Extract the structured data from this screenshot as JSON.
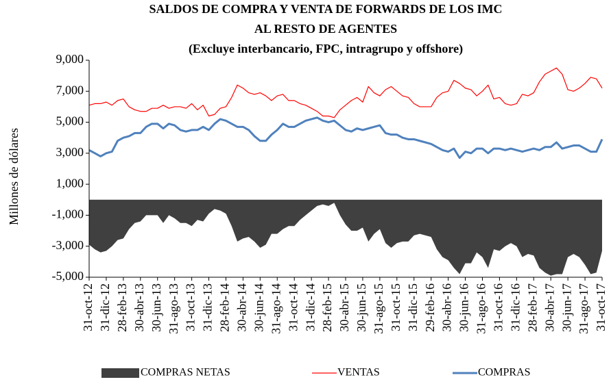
{
  "chart_data": {
    "type": "line",
    "title": "SALDOS DE COMPRA Y VENTA DE FORWARDS DE LOS IMC",
    "title_line2": "AL RESTO DE AGENTES",
    "subtitle": "(Excluye interbancario, FPC, intragrupo y offshore)",
    "y_label": "Millones de dólares",
    "categories": [
      "31-oct-12",
      null,
      null,
      "31-dic-12",
      null,
      null,
      "28-feb-13",
      null,
      null,
      "30-abr-13",
      null,
      null,
      "30-jun-13",
      null,
      null,
      "31-ago-13",
      null,
      null,
      "31-oct-13",
      null,
      null,
      "31-dic-13",
      null,
      null,
      "28-feb-14",
      null,
      null,
      "30-abr-14",
      null,
      null,
      "30-jun-14",
      null,
      null,
      "31-ago-14",
      null,
      null,
      "31-oct-14",
      null,
      null,
      "31-dic-14",
      null,
      null,
      "28-feb-15",
      null,
      null,
      "30-abr-15",
      null,
      null,
      "30-jun-15",
      null,
      null,
      "31-ago-15",
      null,
      null,
      "31-oct-15",
      null,
      null,
      "31-dic-15",
      null,
      null,
      "29-feb-16",
      null,
      null,
      "30-abr-16",
      null,
      null,
      "30-jun-16",
      null,
      null,
      "31-ago-16",
      null,
      null,
      "31-oct-16",
      null,
      null,
      "31-dic-16",
      null,
      null,
      "28-feb-17",
      null,
      null,
      "30-abr-17",
      null,
      null,
      "30-jun-17",
      null,
      null,
      "31-ago-17",
      null,
      null,
      "31-oct-17"
    ],
    "series": [
      {
        "name": "COMPRAS NETAS",
        "kind": "area",
        "color": "#404040",
        "values": [
          -2900,
          -3200,
          -3400,
          -3300,
          -3000,
          -2600,
          -2500,
          -1900,
          -1500,
          -1400,
          -1000,
          -1000,
          -1000,
          -1500,
          -1000,
          -1200,
          -1500,
          -1500,
          -1700,
          -1300,
          -1400,
          -900,
          -600,
          -700,
          -900,
          -1700,
          -2700,
          -2500,
          -2400,
          -2700,
          -3100,
          -2900,
          -2200,
          -2200,
          -1900,
          -1700,
          -1700,
          -1300,
          -1000,
          -700,
          -400,
          -300,
          -400,
          -200,
          -1000,
          -1600,
          -2000,
          -2000,
          -1800,
          -2700,
          -2200,
          -1900,
          -2800,
          -3100,
          -2800,
          -2700,
          -2700,
          -2300,
          -2200,
          -2300,
          -2400,
          -3200,
          -3700,
          -3900,
          -4400,
          -4800,
          -4100,
          -4100,
          -3400,
          -3700,
          -4400,
          -3200,
          -3300,
          -3000,
          -2800,
          -3000,
          -3700,
          -3500,
          -3600,
          -4400,
          -4700,
          -4900,
          -4800,
          -4800,
          -3700,
          -3500,
          -3700,
          -4200,
          -4800,
          -4700,
          -3300
        ]
      },
      {
        "name": "VENTAS",
        "kind": "line",
        "color": "#ff0000",
        "width": 1.2,
        "values": [
          6100,
          6200,
          6200,
          6300,
          6100,
          6400,
          6500,
          6000,
          5800,
          5700,
          5700,
          5900,
          5900,
          6100,
          5900,
          6000,
          6000,
          5900,
          6200,
          5800,
          6100,
          5400,
          5500,
          5900,
          6000,
          6600,
          7400,
          7200,
          6900,
          6800,
          6900,
          6700,
          6400,
          6700,
          6800,
          6400,
          6400,
          6200,
          6100,
          5900,
          5700,
          5400,
          5400,
          5300,
          5800,
          6100,
          6400,
          6600,
          6300,
          7300,
          6900,
          6700,
          7100,
          7300,
          7000,
          6700,
          6600,
          6200,
          6000,
          6000,
          6000,
          6600,
          6900,
          7000,
          7700,
          7500,
          7200,
          7100,
          6700,
          7000,
          7400,
          6500,
          6600,
          6200,
          6100,
          6200,
          6800,
          6700,
          6900,
          7600,
          8100,
          8300,
          8500,
          8100,
          7100,
          7000,
          7200,
          7500,
          7900,
          7800,
          7200
        ]
      },
      {
        "name": "COMPRAS",
        "kind": "line",
        "color": "#4f81bd",
        "width": 3,
        "values": [
          3200,
          3000,
          2800,
          3000,
          3100,
          3800,
          4000,
          4100,
          4300,
          4300,
          4700,
          4900,
          4900,
          4600,
          4900,
          4800,
          4500,
          4400,
          4500,
          4500,
          4700,
          4500,
          4900,
          5200,
          5100,
          4900,
          4700,
          4700,
          4500,
          4100,
          3800,
          3800,
          4200,
          4500,
          4900,
          4700,
          4700,
          4900,
          5100,
          5200,
          5300,
          5100,
          5000,
          5100,
          4800,
          4500,
          4400,
          4600,
          4500,
          4600,
          4700,
          4800,
          4300,
          4200,
          4200,
          4000,
          3900,
          3900,
          3800,
          3700,
          3600,
          3400,
          3200,
          3100,
          3300,
          2700,
          3100,
          3000,
          3300,
          3300,
          3000,
          3300,
          3300,
          3200,
          3300,
          3200,
          3100,
          3200,
          3300,
          3200,
          3400,
          3400,
          3700,
          3300,
          3400,
          3500,
          3500,
          3300,
          3100,
          3100,
          3900
        ]
      }
    ],
    "ylim": [
      -5000,
      9000
    ],
    "yticks": [
      {
        "value": 9000,
        "label": "9,000"
      },
      {
        "value": 7000,
        "label": "7,000"
      },
      {
        "value": 5000,
        "label": "5,000"
      },
      {
        "value": 3000,
        "label": "3,000"
      },
      {
        "value": 1000,
        "label": "1,000"
      },
      {
        "value": -1000,
        "label": "-1,000"
      },
      {
        "value": -3000,
        "label": "-3,000"
      },
      {
        "value": -5000,
        "label": "-5,000"
      }
    ]
  }
}
